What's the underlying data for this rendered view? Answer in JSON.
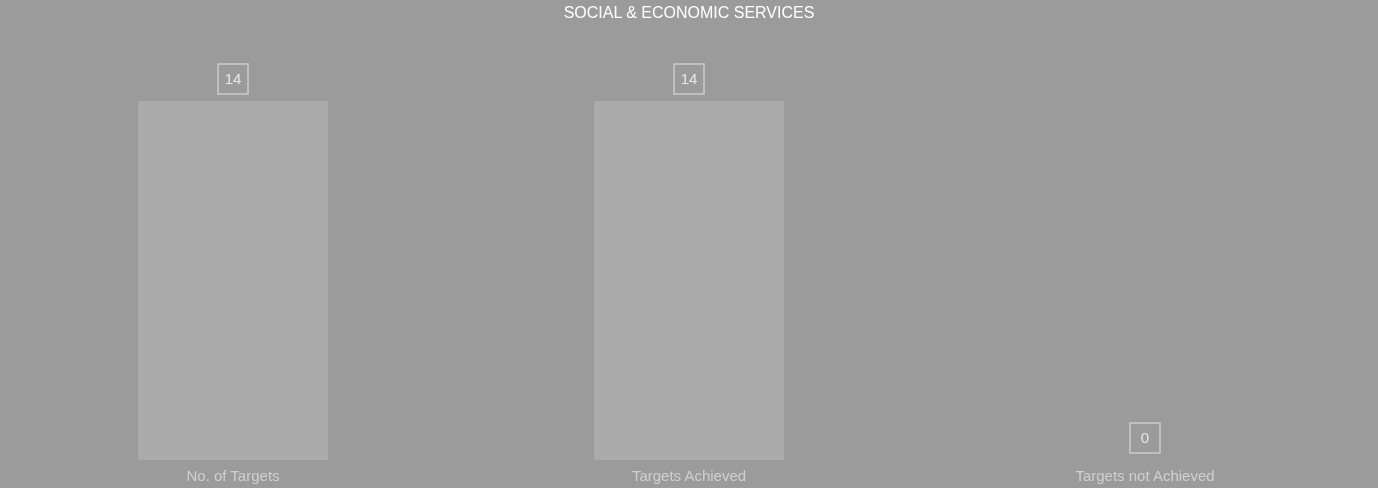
{
  "chart_data": {
    "type": "bar",
    "title": "SOCIAL & ECONOMIC SERVICES",
    "categories": [
      "No. of Targets",
      "Targets Achieved",
      "Targets not Achieved"
    ],
    "values": [
      14,
      14,
      0
    ],
    "color": "#ababab",
    "data_labels": true,
    "grid": false
  }
}
